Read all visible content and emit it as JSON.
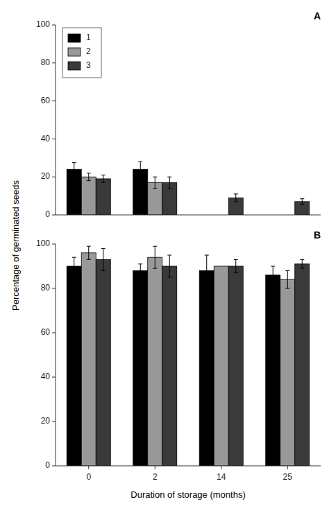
{
  "chart_data": [
    {
      "type": "bar",
      "title": "A",
      "categories": [
        "0",
        "2",
        "14",
        "25"
      ],
      "series": [
        {
          "name": "1",
          "color": "#000000",
          "values": [
            24,
            24,
            0,
            0
          ],
          "errors": [
            3.5,
            4,
            0,
            0
          ]
        },
        {
          "name": "2",
          "color": "#999999",
          "values": [
            20,
            17,
            0,
            0
          ],
          "errors": [
            2,
            3,
            0,
            0
          ]
        },
        {
          "name": "3",
          "color": "#3a3a3a",
          "values": [
            19,
            17,
            9,
            7
          ],
          "errors": [
            2,
            3,
            2,
            1.5
          ]
        }
      ],
      "ylabel": "Percentage of germinated seeds",
      "ylim": [
        0,
        100
      ],
      "yticks": [
        0,
        20,
        40,
        60,
        80,
        100
      ],
      "grid": false,
      "legend": "upper-left",
      "tick_labels": "y"
    },
    {
      "type": "bar",
      "title": "B",
      "categories": [
        "0",
        "2",
        "14",
        "25"
      ],
      "series": [
        {
          "color": "#000000",
          "values": [
            90,
            88,
            88,
            86
          ],
          "errors": [
            4,
            3,
            7,
            4
          ]
        },
        {
          "color": "#999999",
          "values": [
            96,
            94,
            90,
            84
          ],
          "errors": [
            3,
            5,
            0,
            4
          ]
        },
        {
          "color": "#3a3a3a",
          "values": [
            93,
            90,
            90,
            91
          ],
          "errors": [
            5,
            5,
            3,
            2
          ]
        }
      ],
      "xlabel": "Duration of storage (months)",
      "ylim": [
        0,
        100
      ],
      "yticks": [
        0,
        20,
        40,
        60,
        80,
        100
      ],
      "grid": false
    }
  ]
}
